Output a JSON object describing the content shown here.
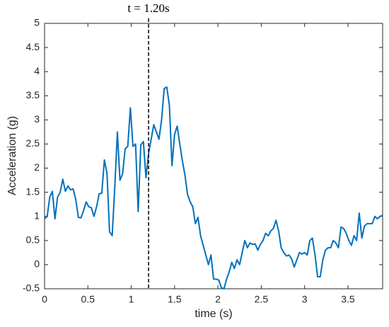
{
  "chart_data": {
    "type": "line",
    "xlabel": "time (s)",
    "ylabel": "Acceleration (g)",
    "annotation": "t = 1.20s",
    "vline": 1.2,
    "color": "#0072bd",
    "xlim": [
      0,
      3.9
    ],
    "xticks": [
      0,
      0.5,
      1,
      1.5,
      2,
      2.5,
      3,
      3.5
    ],
    "ylim": [
      -0.5,
      5
    ],
    "yticks": [
      -0.5,
      0,
      0.5,
      1,
      1.5,
      2,
      2.5,
      3,
      3.5,
      4,
      4.5,
      5
    ],
    "x": [
      0,
      0.03,
      0.06,
      0.09,
      0.12,
      0.15,
      0.18,
      0.21,
      0.24,
      0.27,
      0.3,
      0.33,
      0.36,
      0.39,
      0.42,
      0.45,
      0.48,
      0.51,
      0.54,
      0.57,
      0.6,
      0.63,
      0.66,
      0.69,
      0.72,
      0.75,
      0.78,
      0.81,
      0.84,
      0.87,
      0.9,
      0.93,
      0.96,
      0.99,
      1.02,
      1.05,
      1.08,
      1.11,
      1.14,
      1.17,
      1.2,
      1.23,
      1.26,
      1.29,
      1.32,
      1.35,
      1.38,
      1.41,
      1.44,
      1.47,
      1.5,
      1.53,
      1.56,
      1.59,
      1.62,
      1.65,
      1.68,
      1.71,
      1.74,
      1.77,
      1.8,
      1.83,
      1.86,
      1.89,
      1.92,
      1.95,
      1.98,
      2.01,
      2.04,
      2.07,
      2.1,
      2.13,
      2.16,
      2.19,
      2.22,
      2.25,
      2.28,
      2.31,
      2.34,
      2.37,
      2.4,
      2.43,
      2.46,
      2.49,
      2.52,
      2.55,
      2.58,
      2.61,
      2.64,
      2.67,
      2.7,
      2.73,
      2.76,
      2.79,
      2.82,
      2.85,
      2.88,
      2.91,
      2.94,
      2.97,
      3.0,
      3.03,
      3.06,
      3.09,
      3.12,
      3.15,
      3.18,
      3.21,
      3.24,
      3.27,
      3.3,
      3.33,
      3.36,
      3.39,
      3.42,
      3.45,
      3.48,
      3.51,
      3.54,
      3.57,
      3.6,
      3.63,
      3.66,
      3.69,
      3.72,
      3.75,
      3.78,
      3.81,
      3.84,
      3.87,
      3.9
    ],
    "values": [
      0.95,
      1.0,
      1.4,
      1.52,
      0.95,
      1.4,
      1.5,
      1.77,
      1.52,
      1.63,
      1.55,
      1.57,
      1.35,
      0.98,
      0.97,
      1.12,
      1.3,
      1.2,
      1.18,
      1.0,
      1.2,
      1.47,
      1.48,
      2.17,
      1.9,
      0.68,
      0.6,
      1.6,
      2.75,
      1.75,
      1.88,
      2.4,
      2.45,
      3.25,
      2.45,
      2.5,
      1.1,
      2.48,
      2.55,
      1.8,
      2.3,
      2.6,
      2.9,
      2.75,
      2.6,
      3.0,
      3.65,
      3.68,
      3.3,
      2.05,
      2.7,
      2.87,
      2.5,
      2.15,
      1.85,
      1.45,
      1.3,
      1.2,
      0.85,
      0.98,
      0.6,
      0.4,
      0.2,
      0.0,
      0.2,
      -0.3,
      -0.3,
      -0.32,
      -0.48,
      -0.5,
      -0.3,
      -0.15,
      0.05,
      -0.08,
      0.1,
      0.0,
      0.25,
      0.5,
      0.35,
      0.45,
      0.42,
      0.43,
      0.3,
      0.42,
      0.5,
      0.65,
      0.6,
      0.7,
      0.75,
      0.92,
      0.7,
      0.35,
      0.25,
      0.18,
      0.2,
      0.12,
      -0.05,
      0.1,
      0.25,
      0.22,
      0.25,
      0.2,
      0.5,
      0.55,
      0.2,
      -0.25,
      -0.25,
      0.1,
      0.3,
      0.35,
      0.35,
      0.5,
      0.45,
      0.35,
      0.78,
      0.75,
      0.65,
      0.5,
      0.4,
      0.6,
      0.5,
      1.07,
      0.55,
      0.8,
      0.85,
      0.85,
      0.85,
      1.0,
      0.95,
      1.0,
      1.02
    ]
  }
}
